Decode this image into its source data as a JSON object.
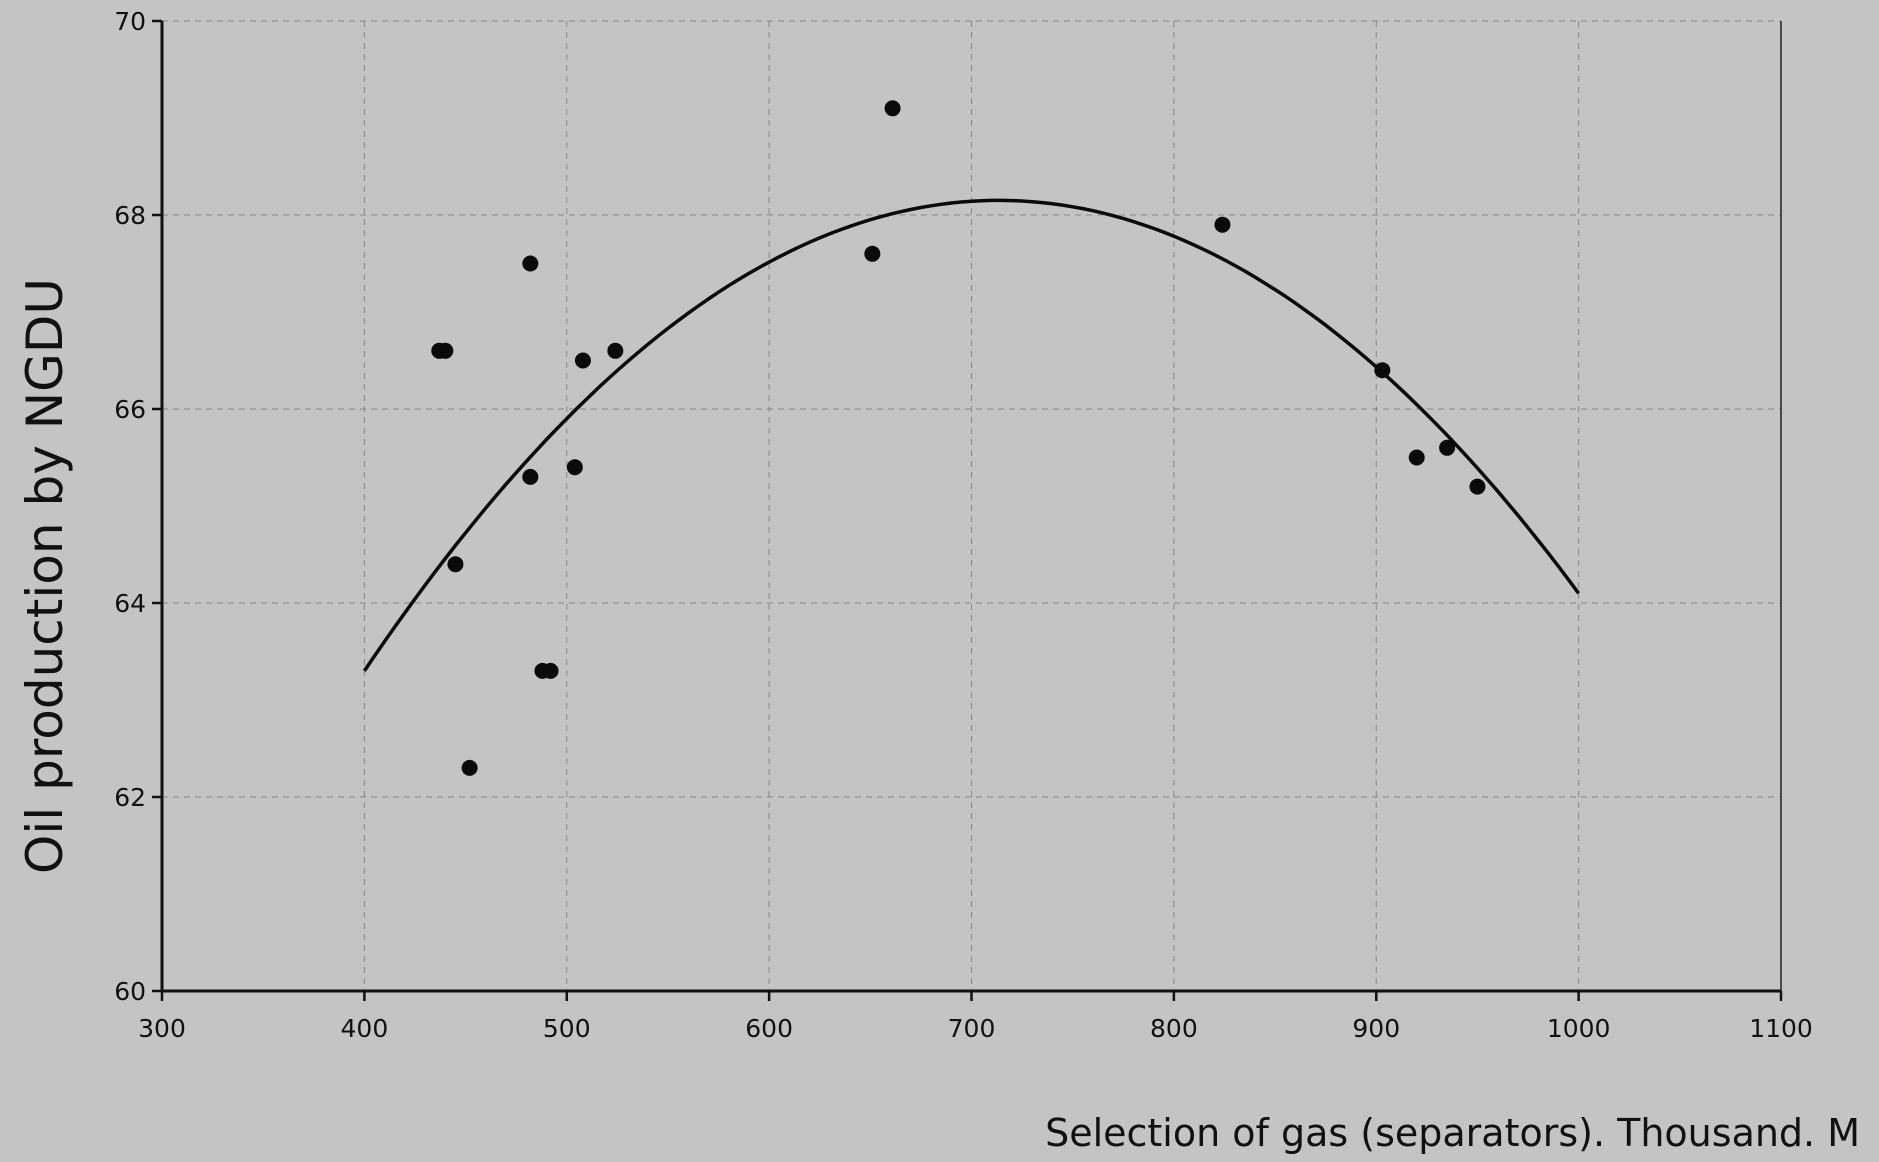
{
  "chart_data": {
    "type": "scatter",
    "title": "",
    "xlabel": "Selection of gas (separators). Thousand. M",
    "ylabel": "Oil production by NGDU",
    "xlim": [
      300,
      1100
    ],
    "ylim": [
      60,
      70
    ],
    "x_ticks": [
      "300",
      "400",
      "500",
      "600",
      "700",
      "800",
      "900",
      "1000",
      "1100"
    ],
    "y_ticks": [
      "60",
      "62",
      "64",
      "66",
      "68",
      "70"
    ],
    "grid": true,
    "points": [
      {
        "x": 437,
        "y": 66.6
      },
      {
        "x": 440,
        "y": 66.6
      },
      {
        "x": 445,
        "y": 64.4
      },
      {
        "x": 452,
        "y": 62.3
      },
      {
        "x": 482,
        "y": 67.5
      },
      {
        "x": 482,
        "y": 65.3
      },
      {
        "x": 488,
        "y": 63.3
      },
      {
        "x": 492,
        "y": 63.3
      },
      {
        "x": 504,
        "y": 65.4
      },
      {
        "x": 508,
        "y": 66.5
      },
      {
        "x": 524,
        "y": 66.6
      },
      {
        "x": 651,
        "y": 67.6
      },
      {
        "x": 661,
        "y": 69.1
      },
      {
        "x": 824,
        "y": 67.9
      },
      {
        "x": 903,
        "y": 66.4
      },
      {
        "x": 920,
        "y": 65.5
      },
      {
        "x": 935,
        "y": 65.6
      },
      {
        "x": 950,
        "y": 65.2
      }
    ],
    "trend": {
      "type": "quadratic",
      "x_range": [
        400,
        1000
      ],
      "points": [
        {
          "x": 400,
          "y": 63.3
        },
        {
          "x": 710,
          "y": 68.15
        },
        {
          "x": 1000,
          "y": 64.1
        }
      ]
    },
    "colors": {
      "background": "#c4c4c4",
      "marker": "#0a0a0a",
      "line": "#0a0a0a"
    }
  }
}
